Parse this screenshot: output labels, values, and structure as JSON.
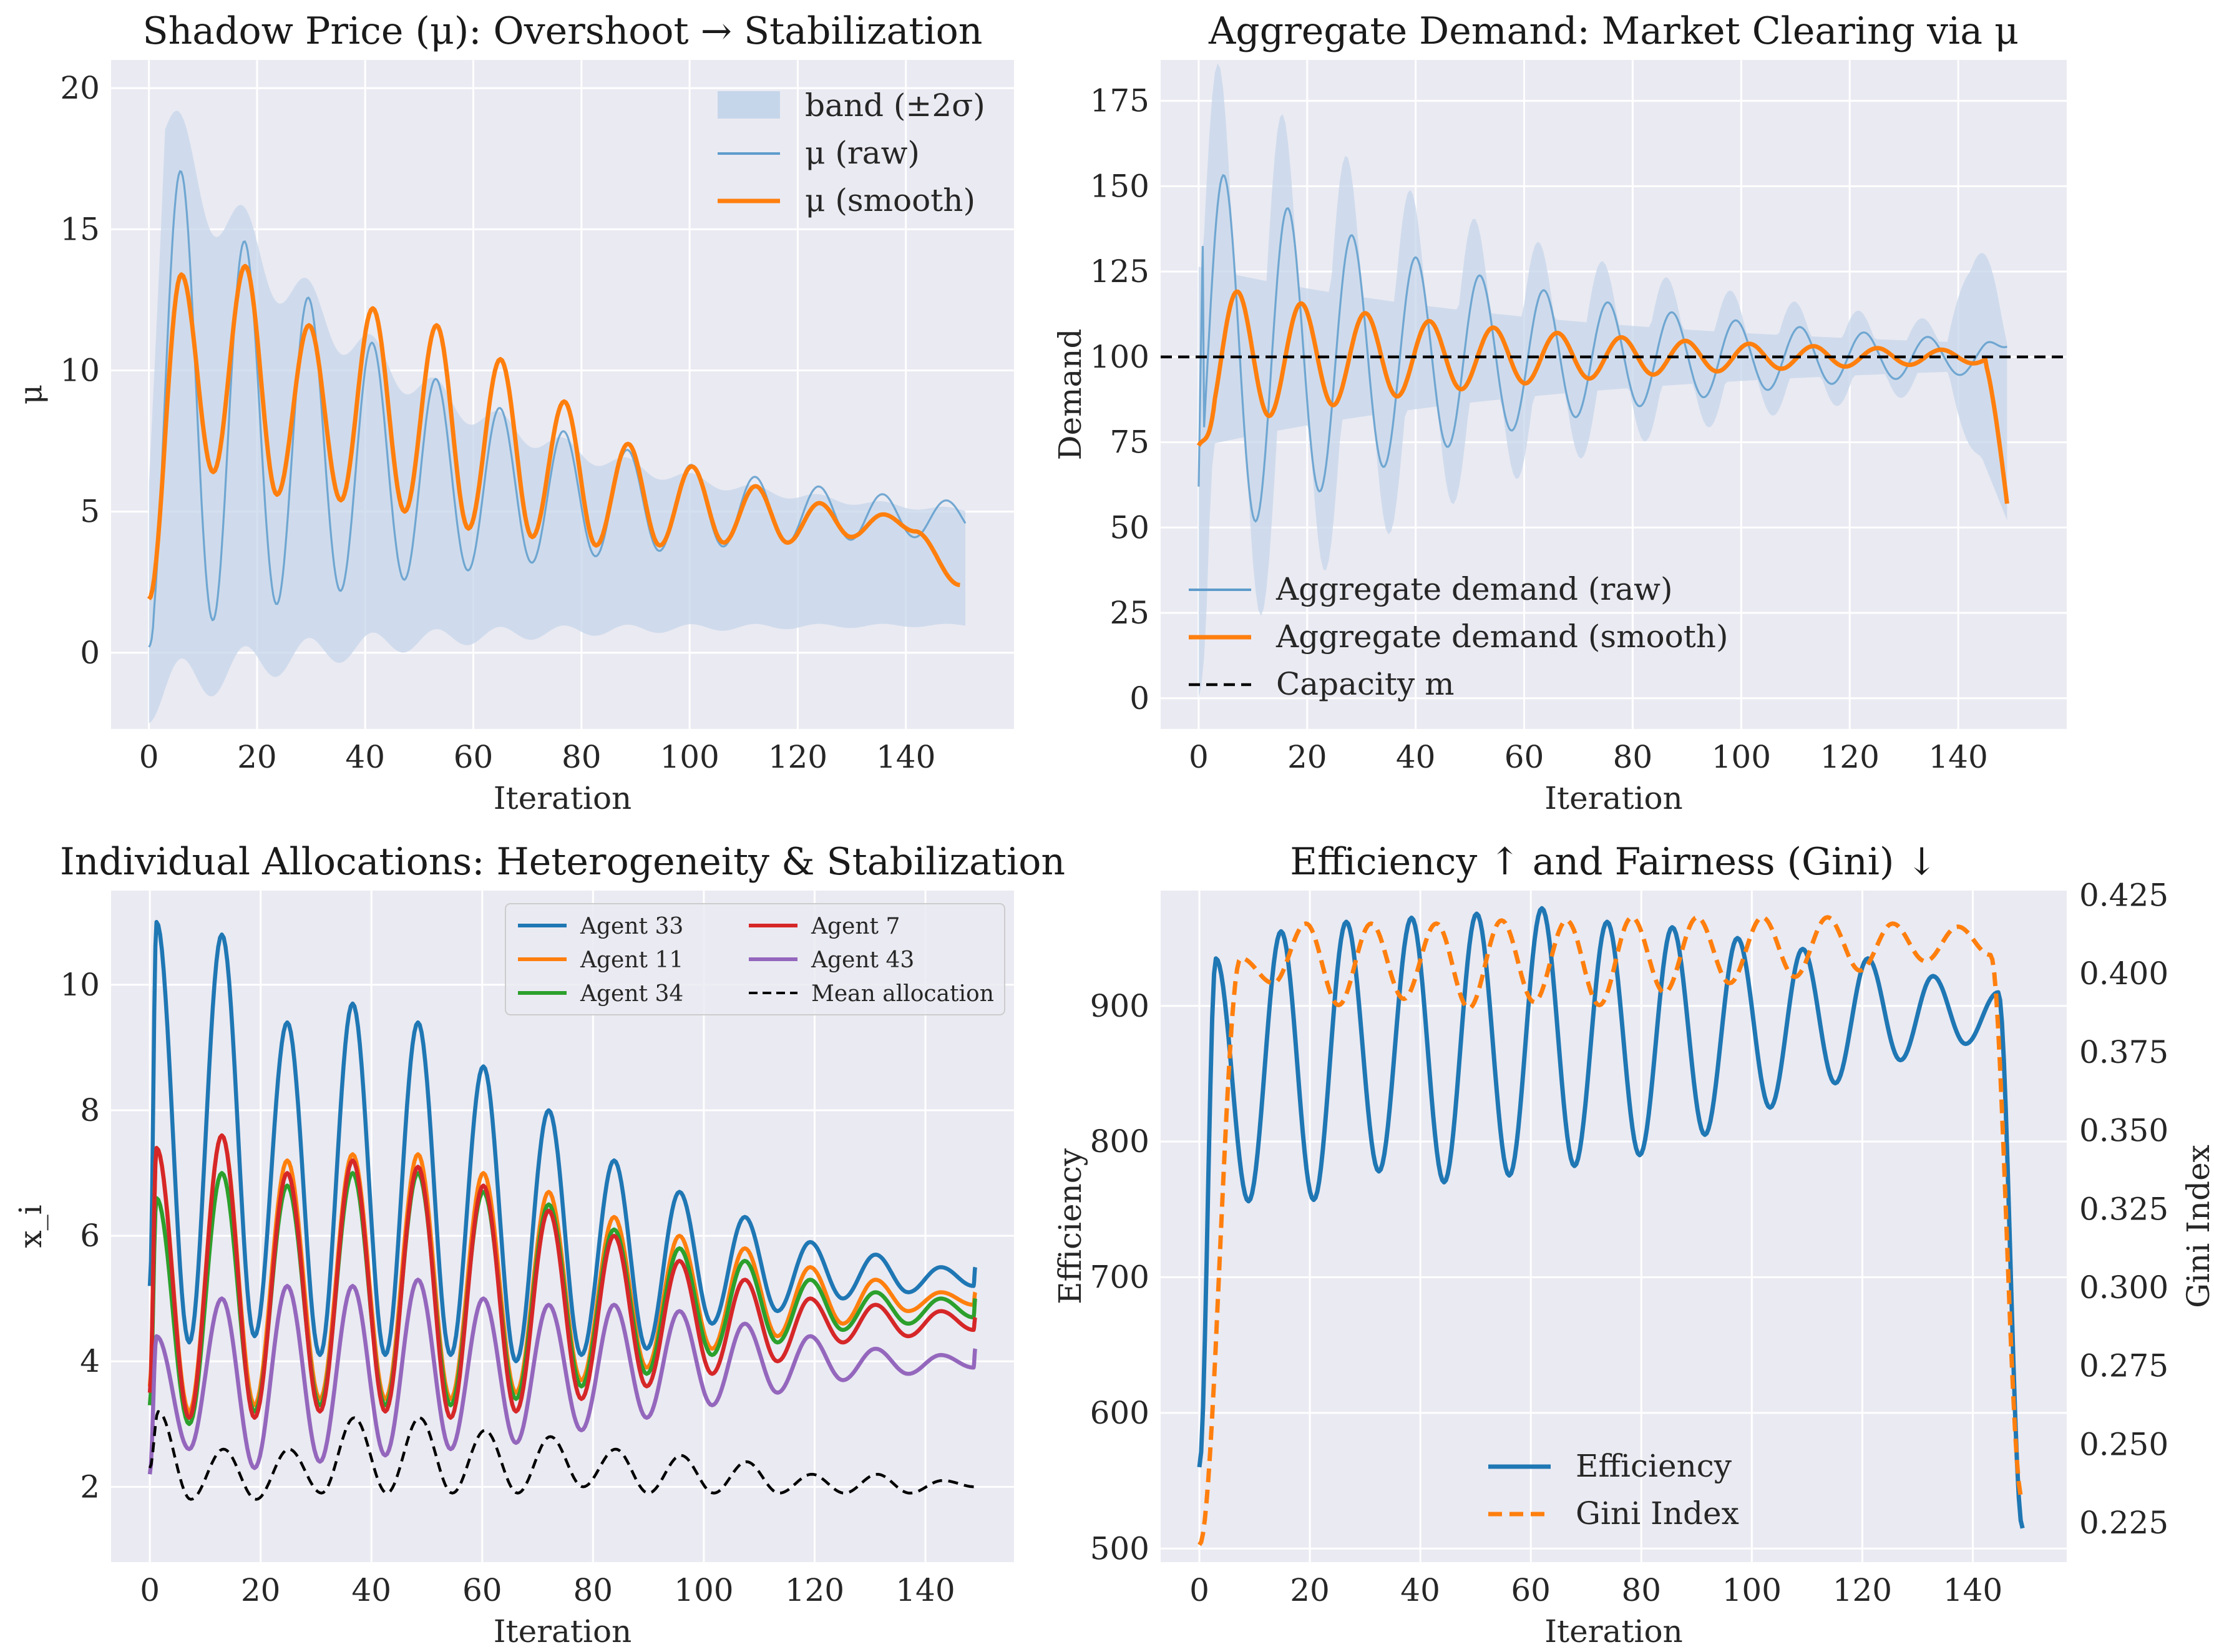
{
  "colors": {
    "panel_bg": "#eaeaf2",
    "grid": "#ffffff",
    "blue": "#1f77b4",
    "orange": "#ff7f0e",
    "green": "#2ca02c",
    "red": "#d62728",
    "purple": "#9467bd",
    "black": "#000000",
    "band": "#c6d6ea",
    "raw_line": "#5e9ccc"
  },
  "chart_data": [
    {
      "type": "line",
      "title": "Shadow Price (μ): Overshoot → Stabilization",
      "xlabel": "Iteration",
      "ylabel": "μ",
      "xlim": [
        -7,
        160
      ],
      "ylim": [
        -2.7,
        21
      ],
      "xticks": [
        0,
        20,
        40,
        60,
        80,
        100,
        120,
        140
      ],
      "yticks": [
        0,
        5,
        10,
        15,
        20
      ],
      "grid": true,
      "legend_position": "upper right",
      "legend": [
        "band (±2σ)",
        "μ (raw)",
        "μ (smooth)"
      ],
      "x_range": [
        0,
        151
      ],
      "oscillation": {
        "period": 11.8,
        "center_start": 9.5,
        "center_end": 4.5,
        "amp_start": 8.6,
        "decay": 0.018
      },
      "series": [
        {
          "name": "band (±2σ)",
          "style": "band",
          "upper_start": 19.5,
          "upper_end": 4.5,
          "lower_start": -1.5,
          "lower_end": 1.0
        },
        {
          "name": "μ (raw)",
          "style": "raw",
          "first": 0.2,
          "last": 4.2
        },
        {
          "name": "μ (smooth)",
          "style": "smooth",
          "first": 1.9,
          "last": 2.4
        },
        {
          "name": "_peaks_smooth",
          "values": [
            13.4,
            13.7,
            11.6,
            12.2,
            11.6,
            10.4,
            8.9,
            7.4,
            6.6,
            5.9,
            5.3,
            4.9
          ]
        }
      ]
    },
    {
      "type": "line",
      "title": "Aggregate Demand: Market Clearing via μ",
      "xlabel": "Iteration",
      "ylabel": "Demand",
      "xlim": [
        -7,
        160
      ],
      "ylim": [
        -9,
        187
      ],
      "xticks": [
        0,
        20,
        40,
        60,
        80,
        100,
        120,
        140
      ],
      "yticks": [
        0,
        25,
        50,
        75,
        100,
        125,
        150,
        175
      ],
      "grid": true,
      "legend_position": "lower left",
      "legend": [
        "Aggregate demand (raw)",
        "Aggregate demand (smooth)",
        "Capacity m"
      ],
      "capacity": 100,
      "oscillation": {
        "period": 11.8,
        "center": 100,
        "amp_start": 48,
        "decay": 0.017
      },
      "series": [
        {
          "name": "Aggregate demand (raw)",
          "style": "raw",
          "first": 62,
          "peak_first": 156,
          "last": 103
        },
        {
          "name": "Aggregate demand (smooth)",
          "style": "smooth",
          "first": 74,
          "last": 57
        },
        {
          "name": "Capacity m",
          "style": "hline",
          "value": 100
        }
      ]
    },
    {
      "type": "line",
      "title": "Individual Allocations: Heterogeneity & Stabilization",
      "xlabel": "Iteration",
      "ylabel": "x_i",
      "xlim": [
        -7,
        156
      ],
      "ylim": [
        0.8,
        11.5
      ],
      "xticks": [
        0,
        20,
        40,
        60,
        80,
        100,
        120,
        140
      ],
      "yticks": [
        2,
        4,
        6,
        8,
        10
      ],
      "grid": true,
      "legend_position": "upper right",
      "legend": [
        "Agent 33",
        "Agent 11",
        "Agent 34",
        "Agent 7",
        "Agent 43",
        "Mean allocation"
      ],
      "series": [
        {
          "name": "Agent 33",
          "peaks": [
            11.0,
            10.8,
            9.4,
            9.7,
            9.4,
            8.7,
            8.0,
            7.2,
            6.7,
            6.3,
            5.9,
            5.7,
            5.5
          ],
          "troughs": [
            4.3,
            4.4,
            4.1,
            4.1,
            4.1,
            4.0,
            4.1,
            4.2,
            4.6,
            4.8,
            5.0,
            5.1,
            5.2
          ],
          "first": 5.2,
          "last": 5.5
        },
        {
          "name": "Agent 11",
          "peaks": [
            7.4,
            7.6,
            7.2,
            7.3,
            7.3,
            7.0,
            6.7,
            6.3,
            6.0,
            5.8,
            5.5,
            5.3,
            5.1
          ],
          "troughs": [
            3.2,
            3.3,
            3.4,
            3.4,
            3.4,
            3.5,
            3.7,
            3.9,
            4.2,
            4.4,
            4.6,
            4.8,
            4.9
          ],
          "first": 3.6,
          "last": 5.1
        },
        {
          "name": "Agent 34",
          "peaks": [
            6.6,
            7.0,
            6.8,
            7.0,
            7.0,
            6.7,
            6.5,
            6.1,
            5.8,
            5.6,
            5.3,
            5.1,
            5.0
          ],
          "troughs": [
            3.0,
            3.2,
            3.3,
            3.3,
            3.3,
            3.4,
            3.6,
            3.8,
            4.1,
            4.3,
            4.5,
            4.6,
            4.7
          ],
          "first": 3.3,
          "last": 5.0
        },
        {
          "name": "Agent 7",
          "peaks": [
            7.4,
            7.6,
            7.0,
            7.2,
            7.1,
            6.8,
            6.4,
            6.0,
            5.6,
            5.3,
            5.0,
            4.9,
            4.8
          ],
          "troughs": [
            3.1,
            3.1,
            3.2,
            3.2,
            3.1,
            3.2,
            3.4,
            3.6,
            3.8,
            4.0,
            4.3,
            4.4,
            4.5
          ],
          "first": 3.5,
          "last": 4.7
        },
        {
          "name": "Agent 43",
          "peaks": [
            4.4,
            5.0,
            5.2,
            5.2,
            5.3,
            5.0,
            4.9,
            4.9,
            4.8,
            4.6,
            4.4,
            4.2,
            4.1
          ],
          "troughs": [
            2.6,
            2.3,
            2.4,
            2.5,
            2.6,
            2.7,
            2.9,
            3.1,
            3.3,
            3.5,
            3.7,
            3.8,
            3.9
          ],
          "first": 2.2,
          "last": 4.2
        },
        {
          "name": "Mean allocation",
          "style": "dashed",
          "peaks": [
            3.2,
            2.6,
            2.6,
            3.1,
            3.1,
            2.9,
            2.8,
            2.6,
            2.5,
            2.4,
            2.2,
            2.2,
            2.1
          ],
          "troughs": [
            1.8,
            1.8,
            1.9,
            1.9,
            1.9,
            1.9,
            2.0,
            1.9,
            1.9,
            1.9,
            1.9,
            1.9,
            1.9
          ],
          "first": 2.3,
          "last": 2.0
        }
      ]
    },
    {
      "type": "line",
      "title": "Efficiency ↑ and Fairness (Gini) ↓",
      "xlabel": "Iteration",
      "ylabel": "Efficiency",
      "ylabel_right": "Gini Index",
      "xlim": [
        -7,
        157
      ],
      "ylim": [
        490,
        985
      ],
      "ylim_right": [
        0.2125,
        0.4265
      ],
      "xticks": [
        0,
        20,
        40,
        60,
        80,
        100,
        120,
        140
      ],
      "yticks": [
        500,
        600,
        700,
        800,
        900
      ],
      "yticks_right": [
        0.225,
        0.25,
        0.275,
        0.3,
        0.325,
        0.35,
        0.375,
        0.4,
        0.425
      ],
      "grid": true,
      "legend_position": "lower center",
      "legend": [
        "Efficiency",
        "Gini Index"
      ],
      "series": [
        {
          "name": "Efficiency",
          "axis": "left",
          "peaks": [
            935,
            955,
            962,
            965,
            968,
            972,
            962,
            958,
            950,
            942,
            935,
            922,
            910
          ],
          "troughs": [
            756,
            757,
            778,
            770,
            775,
            782,
            790,
            805,
            825,
            843,
            860,
            872,
            885
          ],
          "first": 560,
          "last": 515
        },
        {
          "name": "Gini Index",
          "axis": "right",
          "style": "dashed",
          "peaks": [
            0.405,
            0.416,
            0.416,
            0.416,
            0.417,
            0.417,
            0.418,
            0.418,
            0.418,
            0.418,
            0.416,
            0.415,
            0.412
          ],
          "troughs": [
            0.397,
            0.39,
            0.392,
            0.389,
            0.391,
            0.39,
            0.394,
            0.397,
            0.399,
            0.401,
            0.404,
            0.406,
            0.408
          ],
          "first": 0.218,
          "last": 0.232
        }
      ]
    }
  ]
}
